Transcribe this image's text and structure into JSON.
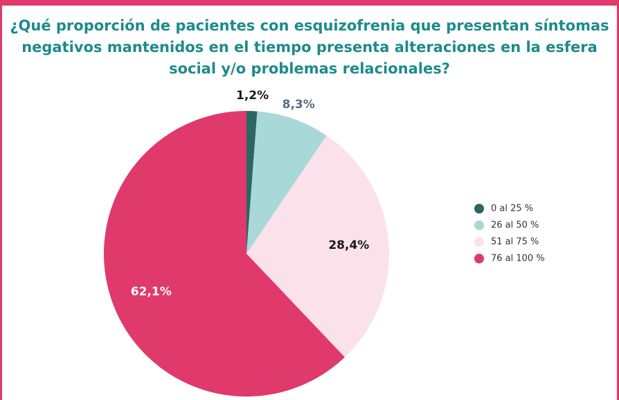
{
  "chart_data": {
    "type": "pie",
    "title": "¿Qué proporción de pacientes con esquizofrenia que presentan síntomas negativos mantenidos en el tiempo presenta alteraciones en la esfera social y/o problemas relacionales?",
    "categories": [
      "0 al 25 %",
      "26 al 50 %",
      "51 al 75 %",
      "76 al 100 %"
    ],
    "values": [
      1.2,
      8.3,
      28.4,
      62.1
    ],
    "value_labels": [
      "1,2%",
      "8,3%",
      "28,4%",
      "62,1%"
    ],
    "colors": [
      "#2b6663",
      "#a9d8d9",
      "#fbe1ea",
      "#e0396b"
    ],
    "label_colors": [
      "#1a1a1a",
      "#5b6b82",
      "#1a1a1a",
      "#ffffff"
    ],
    "legend": "right"
  }
}
